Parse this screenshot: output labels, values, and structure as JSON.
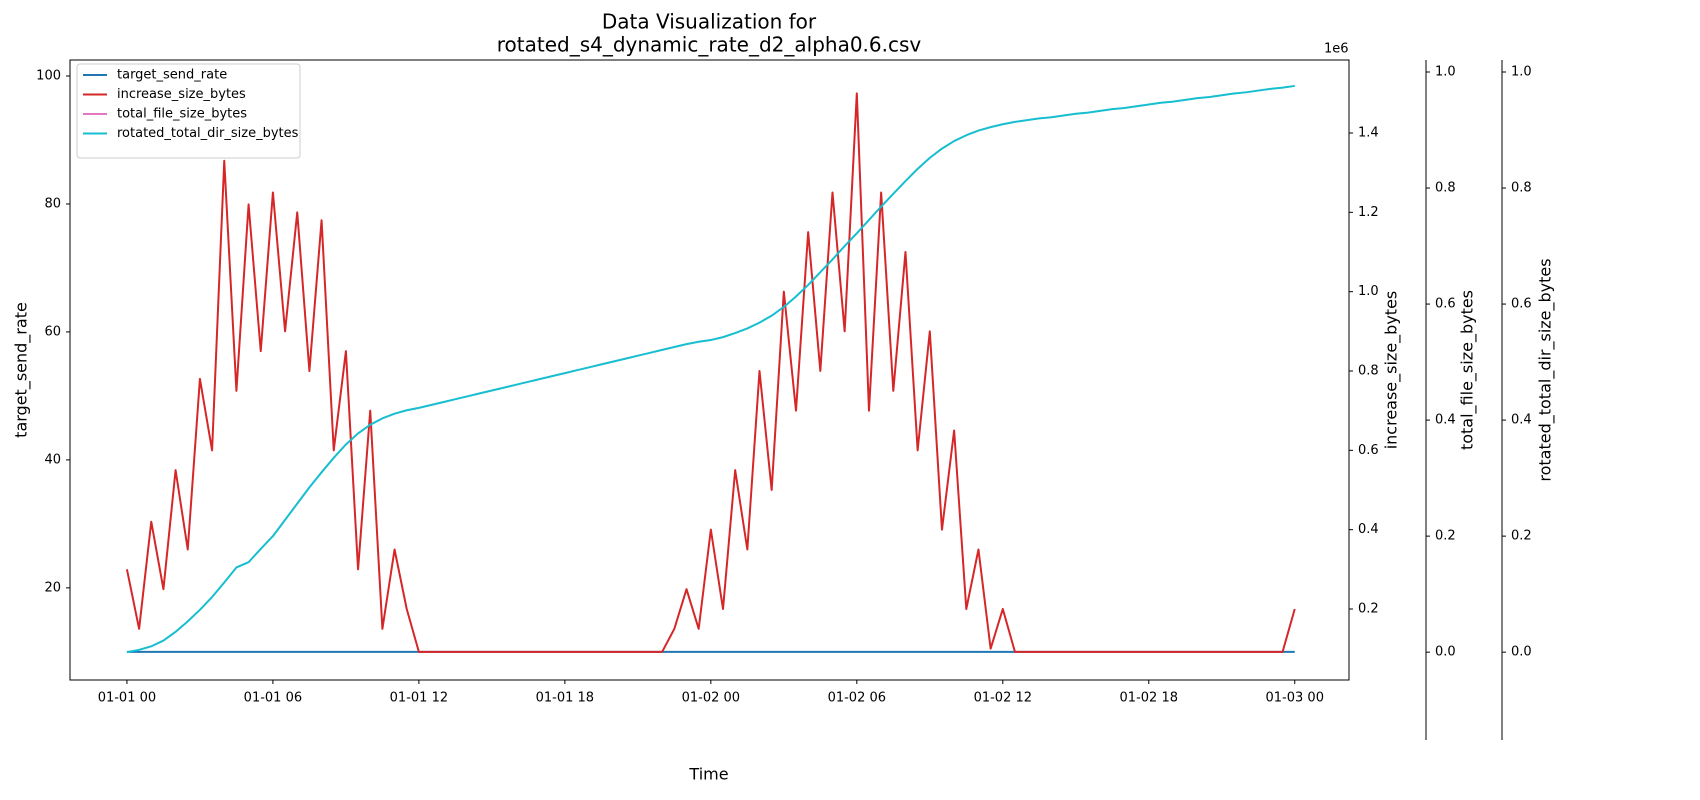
{
  "chart_data": {
    "type": "line",
    "title": [
      "Data Visualization for",
      "rotated_s4_dynamic_rate_d2_alpha0.6.csv"
    ],
    "xlabel": "Time",
    "ylabel": "target_send_rate",
    "y2label": "increase_size_bytes",
    "y2_offset": "1e6",
    "y3label": "total_file_size_bytes",
    "y4label": "rotated_total_dir_size_bytes",
    "legend": "upper left",
    "x": [
      0,
      0.5,
      1,
      1.5,
      2,
      2.5,
      3,
      3.5,
      4,
      4.5,
      5,
      5.5,
      6,
      6.5,
      7,
      7.5,
      8,
      8.5,
      9,
      9.5,
      10,
      10.5,
      11,
      11.5,
      12,
      12.5,
      13,
      13.5,
      14,
      14.5,
      15,
      15.5,
      16,
      16.5,
      17,
      17.5,
      18,
      18.5,
      19,
      19.5,
      20,
      20.5,
      21,
      21.5,
      22,
      22.5,
      23,
      23.5,
      24,
      24.5,
      25,
      25.5,
      26,
      26.5,
      27,
      27.5,
      28,
      28.5,
      29,
      29.5,
      30,
      30.5,
      31,
      31.5,
      32,
      32.5,
      33,
      33.5,
      34,
      34.5,
      35,
      35.5,
      36,
      36.5,
      37,
      37.5,
      38,
      38.5,
      39,
      39.5,
      40,
      40.5,
      41,
      41.5,
      42,
      42.5,
      43,
      43.5,
      44,
      44.5,
      45,
      45.5,
      46,
      46.5,
      47,
      47.5,
      48
    ],
    "xlim": [
      -2.34,
      50.23
    ],
    "xticks": [
      {
        "value": 0,
        "label": "01-01 00"
      },
      {
        "value": 6,
        "label": "01-01 06"
      },
      {
        "value": 12,
        "label": "01-01 12"
      },
      {
        "value": 18,
        "label": "01-01 18"
      },
      {
        "value": 24,
        "label": "01-02 00"
      },
      {
        "value": 30,
        "label": "01-02 06"
      },
      {
        "value": 36,
        "label": "01-02 12"
      },
      {
        "value": 42,
        "label": "01-02 18"
      },
      {
        "value": 48,
        "label": "01-03 00"
      }
    ],
    "ylim": [
      5.6,
      102.5
    ],
    "yticks": [
      20,
      40,
      60,
      80,
      100
    ],
    "y2lim": [
      0.021,
      1.584
    ],
    "y2ticks": [
      0.2,
      0.4,
      0.6,
      0.8,
      {
        "value": 1,
        "label": "1.0"
      },
      1.2,
      1.4
    ],
    "y3lim": [
      -0.048,
      1.0207
    ],
    "y3ticks": [
      {
        "value": 0,
        "label": "0.0"
      },
      0.2,
      0.4,
      0.6,
      0.8,
      {
        "value": 1,
        "label": "1.0"
      }
    ],
    "y4lim": [
      -0.048,
      1.0207
    ],
    "y4ticks": [
      {
        "value": 0,
        "label": "0.0"
      },
      0.2,
      0.4,
      0.6,
      0.8,
      {
        "value": 1,
        "label": "1.0"
      }
    ],
    "series": [
      {
        "name": "target_send_rate",
        "color": "#1f77b4",
        "axis": "y",
        "values": [
          10,
          10,
          10,
          10,
          10,
          10,
          10,
          10,
          10,
          10,
          10,
          10,
          10,
          10,
          10,
          10,
          10,
          10,
          10,
          10,
          10,
          10,
          10,
          10,
          10,
          10,
          10,
          10,
          10,
          10,
          10,
          10,
          10,
          10,
          10,
          10,
          10,
          10,
          10,
          10,
          10,
          10,
          10,
          10,
          10,
          10,
          10,
          10,
          10,
          10,
          10,
          10,
          10,
          10,
          10,
          10,
          10,
          10,
          10,
          10,
          10,
          10,
          10,
          10,
          10,
          10,
          10,
          10,
          10,
          10,
          10,
          10,
          10,
          10,
          10,
          10,
          10,
          10,
          10,
          10,
          10,
          10,
          10,
          10,
          10,
          10,
          10,
          10,
          10,
          10,
          10,
          10,
          10,
          10,
          10,
          10,
          10
        ]
      },
      {
        "name": "increase_size_bytes",
        "color": "#d62728",
        "axis": "y2",
        "values": [
          0.3,
          0.15,
          0.42,
          0.25,
          0.55,
          0.35,
          0.78,
          0.6,
          1.33,
          0.75,
          1.22,
          0.85,
          1.25,
          0.9,
          1.2,
          0.8,
          1.18,
          0.6,
          0.85,
          0.3,
          0.7,
          0.15,
          0.35,
          0.2,
          0.092,
          0.092,
          0.092,
          0.092,
          0.092,
          0.092,
          0.092,
          0.092,
          0.092,
          0.092,
          0.092,
          0.092,
          0.092,
          0.092,
          0.092,
          0.092,
          0.092,
          0.092,
          0.092,
          0.092,
          0.092,
          0.15,
          0.25,
          0.15,
          0.4,
          0.2,
          0.55,
          0.35,
          0.8,
          0.5,
          1.0,
          0.7,
          1.15,
          0.8,
          1.25,
          0.9,
          1.5,
          0.7,
          1.25,
          0.75,
          1.1,
          0.6,
          0.9,
          0.4,
          0.65,
          0.2,
          0.35,
          0.1,
          0.2,
          0.092,
          0.092,
          0.092,
          0.092,
          0.092,
          0.092,
          0.092,
          0.092,
          0.092,
          0.092,
          0.092,
          0.092,
          0.092,
          0.092,
          0.092,
          0.092,
          0.092,
          0.092,
          0.092,
          0.092,
          0.092,
          0.092,
          0.092,
          0.2
        ]
      },
      {
        "name": "total_file_size_bytes",
        "color": "#e377c2",
        "axis": "y3",
        "values": [
          null,
          null,
          null,
          null,
          null,
          null,
          null,
          null,
          null,
          null,
          null,
          null,
          null,
          null,
          null,
          null,
          null,
          null,
          null,
          null,
          null,
          null,
          null,
          null,
          null,
          null,
          null,
          null,
          null,
          null,
          null,
          null,
          null,
          null,
          null,
          null,
          null,
          null,
          null,
          null,
          null,
          null,
          null,
          null,
          null,
          null,
          null,
          null,
          null,
          null,
          null,
          null,
          null,
          null,
          null,
          null,
          null,
          null,
          null,
          null,
          null,
          null,
          null,
          null,
          null,
          null,
          null,
          null,
          null,
          null,
          null,
          null,
          null,
          null,
          null,
          null,
          null,
          null,
          null,
          null,
          null,
          null,
          null,
          null,
          null,
          null,
          null,
          null,
          null,
          null,
          null,
          null,
          null,
          null,
          null,
          null,
          null
        ]
      },
      {
        "name": "rotated_total_dir_size_bytes",
        "color": "#17becf",
        "axis": "y4",
        "values": [
          0,
          0.004,
          0.01,
          0.02,
          0.035,
          0.053,
          0.073,
          0.095,
          0.12,
          0.146,
          0.155,
          0.178,
          0.2,
          0.228,
          0.256,
          0.284,
          0.31,
          0.335,
          0.358,
          0.377,
          0.392,
          0.403,
          0.411,
          0.417,
          0.421,
          0.426,
          0.431,
          0.436,
          0.441,
          0.446,
          0.451,
          0.456,
          0.461,
          0.466,
          0.471,
          0.476,
          0.481,
          0.486,
          0.491,
          0.496,
          0.501,
          0.506,
          0.511,
          0.516,
          0.521,
          0.526,
          0.531,
          0.535,
          0.538,
          0.543,
          0.55,
          0.558,
          0.568,
          0.58,
          0.595,
          0.613,
          0.633,
          0.655,
          0.677,
          0.7,
          0.722,
          0.745,
          0.768,
          0.79,
          0.812,
          0.833,
          0.852,
          0.868,
          0.881,
          0.891,
          0.899,
          0.905,
          0.91,
          0.914,
          0.917,
          0.92,
          0.922,
          0.925,
          0.928,
          0.93,
          0.933,
          0.936,
          0.938,
          0.941,
          0.944,
          0.947,
          0.949,
          0.952,
          0.955,
          0.957,
          0.96,
          0.963,
          0.965,
          0.968,
          0.971,
          0.973,
          0.976
        ]
      }
    ]
  }
}
